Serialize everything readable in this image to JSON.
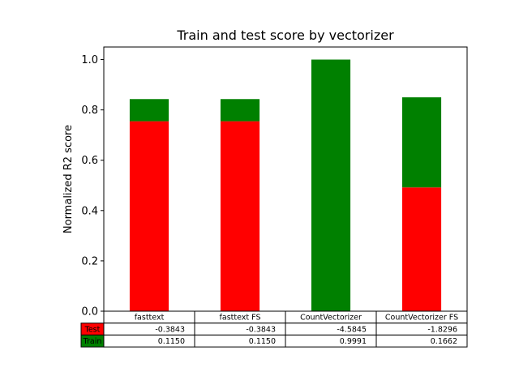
{
  "chart_data": {
    "type": "bar",
    "title": "Train and test score by vectorizer",
    "ylabel": "Normalized R2 score",
    "xlabel": "",
    "ylim": [
      0,
      1.05
    ],
    "yticks": [
      "0.0",
      "0.2",
      "0.4",
      "0.6",
      "0.8",
      "1.0"
    ],
    "ytick_values": [
      0,
      0.2,
      0.4,
      0.6,
      0.8,
      1.0
    ],
    "stacked": true,
    "grid": false,
    "categories": [
      "fasttext",
      "fasttext FS",
      "CountVectorizer",
      "CountVectorizer FS"
    ],
    "series": [
      {
        "name": "Test",
        "color": "#ff0000",
        "values": [
          0.755,
          0.755,
          0.0,
          0.492
        ]
      },
      {
        "name": "Train",
        "color": "#008000",
        "values": [
          0.088,
          0.088,
          1.0,
          0.358
        ]
      }
    ],
    "table": {
      "rows": [
        {
          "label": "Test",
          "color": "#ff0000",
          "cells": [
            "-0.3843",
            "-0.3843",
            "-4.5845",
            "-1.8296"
          ]
        },
        {
          "label": "Train",
          "color": "#008000",
          "cells": [
            "0.1150",
            "0.1150",
            "0.9991",
            "0.1662"
          ]
        }
      ]
    }
  }
}
